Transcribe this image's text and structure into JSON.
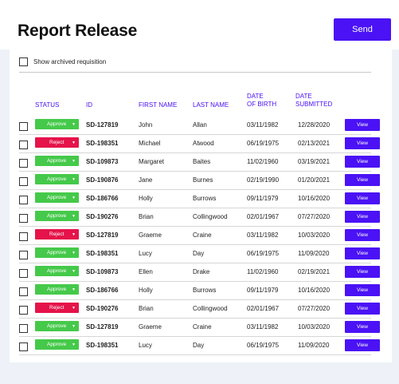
{
  "page": {
    "title": "Report Release",
    "send_label": "Send"
  },
  "filter": {
    "show_archived_label": "Show archived requisition"
  },
  "table": {
    "headers": {
      "status": "STATUS",
      "id": "ID",
      "first_name": "FIRST NAME",
      "last_name": "LAST NAME",
      "dob_line1": "DATE",
      "dob_line2": "OF BIRTH",
      "submitted_line1": "DATE",
      "submitted_line2": "SUBMITTED"
    },
    "view_label": "View",
    "rows": [
      {
        "status": "Approve",
        "id": "SD-127819",
        "first": "John",
        "last": "Allan",
        "dob": "03/11/1982",
        "submitted": "12/28/2020"
      },
      {
        "status": "Reject",
        "id": "SD-198351",
        "first": "Michael",
        "last": "Atwood",
        "dob": "06/19/1975",
        "submitted": "02/13/2021"
      },
      {
        "status": "Approve",
        "id": "SD-109873",
        "first": "Margaret",
        "last": "Baites",
        "dob": "11/02/1960",
        "submitted": "03/19/2021"
      },
      {
        "status": "Approve",
        "id": "SD-190876",
        "first": "Jane",
        "last": "Burnes",
        "dob": "02/19/1990",
        "submitted": "01/20/2021"
      },
      {
        "status": "Approve",
        "id": "SD-186766",
        "first": "Holly",
        "last": "Burrows",
        "dob": "09/11/1979",
        "submitted": "10/16/2020"
      },
      {
        "status": "Approve",
        "id": "SD-190276",
        "first": "Brian",
        "last": "Collingwood",
        "dob": "02/01/1967",
        "submitted": "07/27/2020"
      },
      {
        "status": "Reject",
        "id": "SD-127819",
        "first": "Graeme",
        "last": "Craine",
        "dob": "03/11/1982",
        "submitted": "10/03/2020"
      },
      {
        "status": "Approve",
        "id": "SD-198351",
        "first": "Lucy",
        "last": "Day",
        "dob": "06/19/1975",
        "submitted": "11/09/2020"
      },
      {
        "status": "Approve",
        "id": "SD-109873",
        "first": "Ellen",
        "last": "Drake",
        "dob": "11/02/1960",
        "submitted": "02/19/2021"
      },
      {
        "status": "Approve",
        "id": "SD-186766",
        "first": "Holly",
        "last": "Burrows",
        "dob": "09/11/1979",
        "submitted": "10/16/2020"
      },
      {
        "status": "Reject",
        "id": "SD-190276",
        "first": "Brian",
        "last": "Collingwood",
        "dob": "02/01/1967",
        "submitted": "07/27/2020"
      },
      {
        "status": "Approve",
        "id": "SD-127819",
        "first": "Graeme",
        "last": "Craine",
        "dob": "03/11/1982",
        "submitted": "10/03/2020"
      },
      {
        "status": "Approve",
        "id": "SD-198351",
        "first": "Lucy",
        "last": "Day",
        "dob": "06/19/1975",
        "submitted": "11/09/2020"
      }
    ]
  },
  "colors": {
    "accent": "#4a12f5",
    "approve": "#45c94a",
    "reject": "#e5134a"
  }
}
